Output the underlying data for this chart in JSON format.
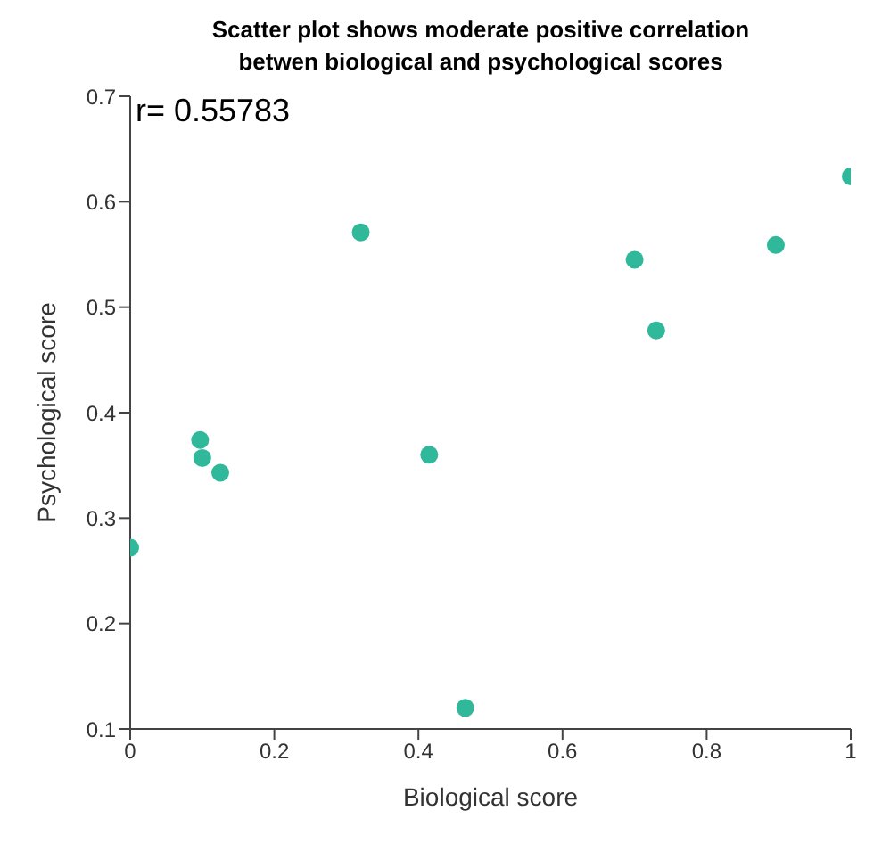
{
  "chart_data": {
    "type": "scatter",
    "title": "Scatter plot shows moderate positive correlation\nbetwen biological and psychological scores",
    "xlabel": "Biological score",
    "ylabel": "Psychological score",
    "annotations": [
      "r= 0.55783"
    ],
    "x": [
      0,
      0.097,
      0.1,
      0.125,
      0.32,
      0.415,
      0.465,
      0.7,
      0.73,
      0.896,
      1.0
    ],
    "values": [
      0.272,
      0.374,
      0.357,
      0.343,
      0.571,
      0.36,
      0.12,
      0.545,
      0.478,
      0.559,
      0.624
    ],
    "color": "#2fb89a",
    "marker": "circle",
    "grid": false,
    "legend": false,
    "xlim": [
      0,
      1
    ],
    "xticks": [
      0,
      0.2,
      0.4,
      0.6,
      0.8,
      1
    ],
    "ylim": [
      0.1,
      0.7
    ],
    "yticks": [
      0.1,
      0.2,
      0.3,
      0.4,
      0.5,
      0.6,
      0.7
    ]
  }
}
